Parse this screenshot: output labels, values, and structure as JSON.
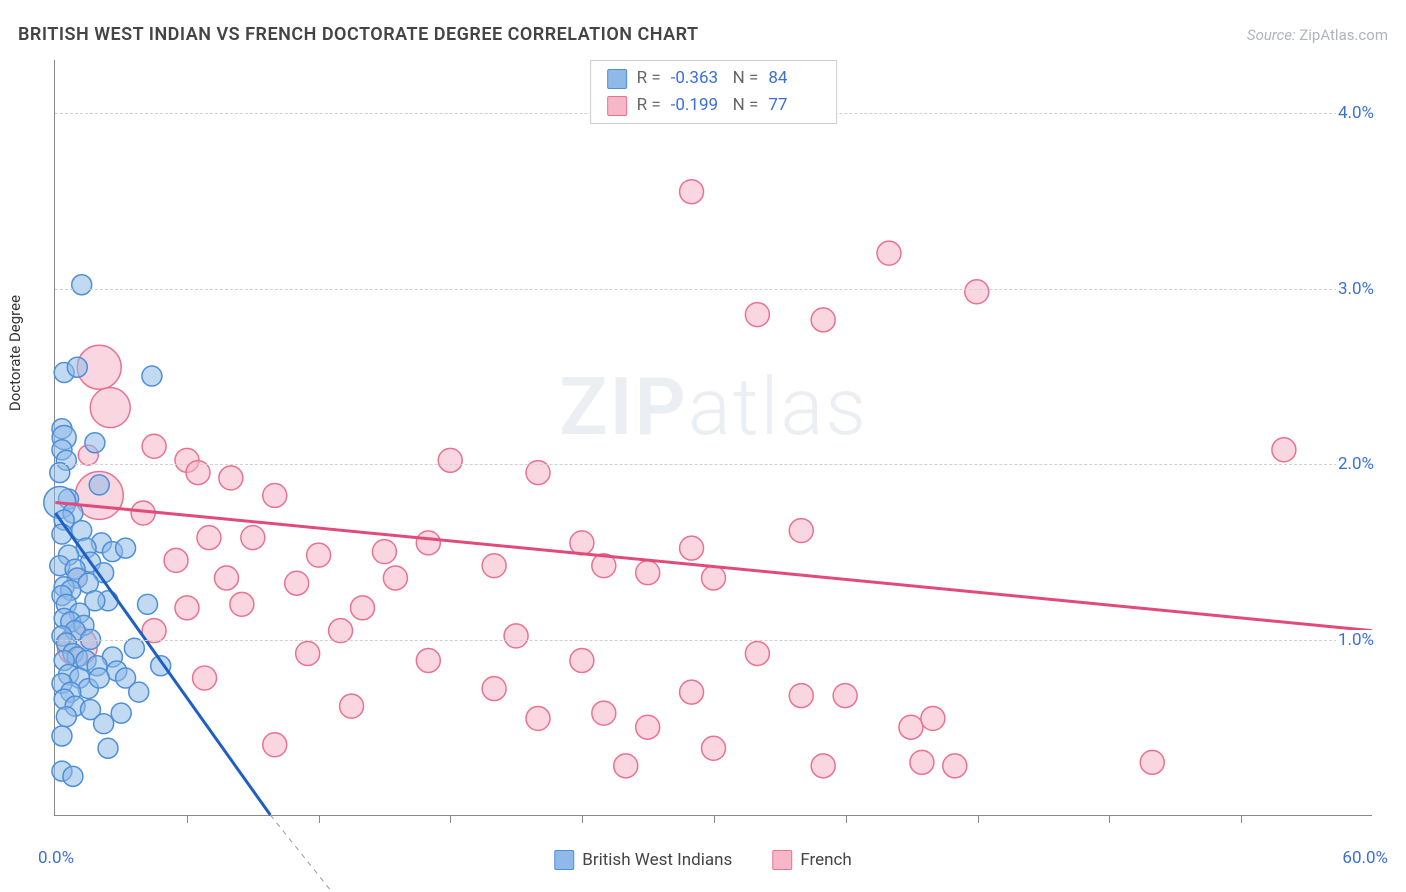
{
  "header": {
    "title": "BRITISH WEST INDIAN VS FRENCH DOCTORATE DEGREE CORRELATION CHART",
    "source_prefix": "Source: ",
    "source_name": "ZipAtlas.com"
  },
  "watermark": {
    "zip": "ZIP",
    "atlas": "atlas"
  },
  "chart": {
    "type": "scatter",
    "background_color": "#ffffff",
    "grid_color": "#d0d0d0",
    "axis_color": "#888888",
    "yaxis_label": "Doctorate Degree",
    "xlim": [
      0,
      60
    ],
    "ylim": [
      0,
      4.3
    ],
    "x_min_label": "0.0%",
    "x_max_label": "60.0%",
    "y_ticks": [
      {
        "v": 1.0,
        "label": "1.0%"
      },
      {
        "v": 2.0,
        "label": "2.0%"
      },
      {
        "v": 3.0,
        "label": "3.0%"
      },
      {
        "v": 4.0,
        "label": "4.0%"
      }
    ],
    "x_tick_positions": [
      6,
      12,
      18,
      24,
      30,
      36,
      42,
      48,
      54
    ],
    "tick_label_color": "#3b6fd6",
    "tick_label_fontsize": 17
  },
  "series": {
    "blue": {
      "name": "British West Indians",
      "fill": "#8fb9e8",
      "stroke": "#4d8fd8",
      "fill_opacity": 0.55,
      "trend": {
        "x1": 0,
        "y1": 1.72,
        "x2": 9.8,
        "y2": 0,
        "color": "#1f5fc4",
        "width": 3,
        "dash_x2": 13.0,
        "dash_y2": -0.5
      },
      "default_r": 10,
      "points": [
        {
          "x": 1.2,
          "y": 3.02,
          "r": 10
        },
        {
          "x": 0.4,
          "y": 2.52,
          "r": 10
        },
        {
          "x": 1.0,
          "y": 2.55,
          "r": 10
        },
        {
          "x": 4.4,
          "y": 2.5,
          "r": 10
        },
        {
          "x": 0.3,
          "y": 2.2,
          "r": 10
        },
        {
          "x": 0.4,
          "y": 2.15,
          "r": 12
        },
        {
          "x": 1.8,
          "y": 2.12,
          "r": 10
        },
        {
          "x": 0.3,
          "y": 2.08,
          "r": 10
        },
        {
          "x": 0.5,
          "y": 2.02,
          "r": 10
        },
        {
          "x": 0.2,
          "y": 1.95,
          "r": 10
        },
        {
          "x": 2.0,
          "y": 1.88,
          "r": 10
        },
        {
          "x": 0.6,
          "y": 1.8,
          "r": 10
        },
        {
          "x": 0.2,
          "y": 1.78,
          "r": 16
        },
        {
          "x": 0.8,
          "y": 1.72,
          "r": 10
        },
        {
          "x": 0.4,
          "y": 1.68,
          "r": 10
        },
        {
          "x": 1.2,
          "y": 1.62,
          "r": 10
        },
        {
          "x": 0.3,
          "y": 1.6,
          "r": 10
        },
        {
          "x": 2.1,
          "y": 1.55,
          "r": 10
        },
        {
          "x": 1.4,
          "y": 1.52,
          "r": 10
        },
        {
          "x": 2.6,
          "y": 1.5,
          "r": 10
        },
        {
          "x": 3.2,
          "y": 1.52,
          "r": 10
        },
        {
          "x": 0.6,
          "y": 1.48,
          "r": 10
        },
        {
          "x": 1.6,
          "y": 1.44,
          "r": 10
        },
        {
          "x": 0.2,
          "y": 1.42,
          "r": 10
        },
        {
          "x": 0.9,
          "y": 1.4,
          "r": 10
        },
        {
          "x": 2.2,
          "y": 1.38,
          "r": 10
        },
        {
          "x": 1.0,
          "y": 1.35,
          "r": 10
        },
        {
          "x": 1.5,
          "y": 1.32,
          "r": 10
        },
        {
          "x": 0.4,
          "y": 1.3,
          "r": 10
        },
        {
          "x": 0.7,
          "y": 1.28,
          "r": 10
        },
        {
          "x": 0.3,
          "y": 1.25,
          "r": 10
        },
        {
          "x": 2.4,
          "y": 1.22,
          "r": 10
        },
        {
          "x": 1.8,
          "y": 1.22,
          "r": 10
        },
        {
          "x": 0.5,
          "y": 1.2,
          "r": 10
        },
        {
          "x": 4.2,
          "y": 1.2,
          "r": 10
        },
        {
          "x": 1.1,
          "y": 1.15,
          "r": 10
        },
        {
          "x": 0.4,
          "y": 1.12,
          "r": 10
        },
        {
          "x": 0.7,
          "y": 1.1,
          "r": 10
        },
        {
          "x": 1.3,
          "y": 1.08,
          "r": 10
        },
        {
          "x": 0.9,
          "y": 1.05,
          "r": 10
        },
        {
          "x": 0.3,
          "y": 1.02,
          "r": 10
        },
        {
          "x": 1.6,
          "y": 1.0,
          "r": 10
        },
        {
          "x": 0.5,
          "y": 0.98,
          "r": 10
        },
        {
          "x": 3.6,
          "y": 0.95,
          "r": 10
        },
        {
          "x": 0.8,
          "y": 0.92,
          "r": 10
        },
        {
          "x": 1.0,
          "y": 0.9,
          "r": 10
        },
        {
          "x": 0.4,
          "y": 0.88,
          "r": 10
        },
        {
          "x": 1.4,
          "y": 0.88,
          "r": 10
        },
        {
          "x": 2.6,
          "y": 0.9,
          "r": 10
        },
        {
          "x": 1.9,
          "y": 0.85,
          "r": 10
        },
        {
          "x": 2.8,
          "y": 0.82,
          "r": 10
        },
        {
          "x": 4.8,
          "y": 0.85,
          "r": 10
        },
        {
          "x": 0.6,
          "y": 0.8,
          "r": 10
        },
        {
          "x": 1.1,
          "y": 0.78,
          "r": 10
        },
        {
          "x": 3.2,
          "y": 0.78,
          "r": 10
        },
        {
          "x": 0.3,
          "y": 0.75,
          "r": 10
        },
        {
          "x": 1.5,
          "y": 0.72,
          "r": 10
        },
        {
          "x": 2.0,
          "y": 0.78,
          "r": 10
        },
        {
          "x": 0.7,
          "y": 0.7,
          "r": 10
        },
        {
          "x": 3.8,
          "y": 0.7,
          "r": 10
        },
        {
          "x": 0.4,
          "y": 0.66,
          "r": 10
        },
        {
          "x": 0.9,
          "y": 0.62,
          "r": 10
        },
        {
          "x": 1.6,
          "y": 0.6,
          "r": 10
        },
        {
          "x": 3.0,
          "y": 0.58,
          "r": 10
        },
        {
          "x": 0.5,
          "y": 0.56,
          "r": 10
        },
        {
          "x": 2.2,
          "y": 0.52,
          "r": 10
        },
        {
          "x": 0.3,
          "y": 0.45,
          "r": 10
        },
        {
          "x": 2.4,
          "y": 0.38,
          "r": 10
        },
        {
          "x": 0.3,
          "y": 0.25,
          "r": 10
        },
        {
          "x": 0.8,
          "y": 0.22,
          "r": 10
        }
      ]
    },
    "pink": {
      "name": "French",
      "fill": "#f6b7c7",
      "stroke": "#e97294",
      "fill_opacity": 0.55,
      "trend": {
        "x1": 0,
        "y1": 1.78,
        "x2": 60,
        "y2": 1.05,
        "color": "#e24a7a",
        "width": 3
      },
      "default_r": 12,
      "points": [
        {
          "x": 29,
          "y": 3.55,
          "r": 12
        },
        {
          "x": 38,
          "y": 3.2,
          "r": 12
        },
        {
          "x": 42,
          "y": 2.98,
          "r": 12
        },
        {
          "x": 32,
          "y": 2.85,
          "r": 12
        },
        {
          "x": 35,
          "y": 2.82,
          "r": 12
        },
        {
          "x": 2.0,
          "y": 2.55,
          "r": 22
        },
        {
          "x": 2.5,
          "y": 2.32,
          "r": 20
        },
        {
          "x": 4.5,
          "y": 2.1,
          "r": 12
        },
        {
          "x": 56,
          "y": 2.08,
          "r": 12
        },
        {
          "x": 1.5,
          "y": 2.05,
          "r": 10
        },
        {
          "x": 6.0,
          "y": 2.02,
          "r": 12
        },
        {
          "x": 18,
          "y": 2.02,
          "r": 12
        },
        {
          "x": 6.5,
          "y": 1.95,
          "r": 12
        },
        {
          "x": 8.0,
          "y": 1.92,
          "r": 12
        },
        {
          "x": 22,
          "y": 1.95,
          "r": 12
        },
        {
          "x": 2.0,
          "y": 1.82,
          "r": 24
        },
        {
          "x": 10,
          "y": 1.82,
          "r": 12
        },
        {
          "x": 4.0,
          "y": 1.72,
          "r": 12
        },
        {
          "x": 34,
          "y": 1.62,
          "r": 12
        },
        {
          "x": 7.0,
          "y": 1.58,
          "r": 12
        },
        {
          "x": 9.0,
          "y": 1.58,
          "r": 12
        },
        {
          "x": 17,
          "y": 1.55,
          "r": 12
        },
        {
          "x": 24,
          "y": 1.55,
          "r": 12
        },
        {
          "x": 29,
          "y": 1.52,
          "r": 12
        },
        {
          "x": 5.5,
          "y": 1.45,
          "r": 12
        },
        {
          "x": 12,
          "y": 1.48,
          "r": 12
        },
        {
          "x": 15,
          "y": 1.5,
          "r": 12
        },
        {
          "x": 20,
          "y": 1.42,
          "r": 12
        },
        {
          "x": 25,
          "y": 1.42,
          "r": 12
        },
        {
          "x": 27,
          "y": 1.38,
          "r": 12
        },
        {
          "x": 30,
          "y": 1.35,
          "r": 12
        },
        {
          "x": 1.0,
          "y": 1.35,
          "r": 10
        },
        {
          "x": 7.8,
          "y": 1.35,
          "r": 12
        },
        {
          "x": 11,
          "y": 1.32,
          "r": 12
        },
        {
          "x": 15.5,
          "y": 1.35,
          "r": 12
        },
        {
          "x": 8.5,
          "y": 1.2,
          "r": 12
        },
        {
          "x": 6.0,
          "y": 1.18,
          "r": 12
        },
        {
          "x": 14,
          "y": 1.18,
          "r": 12
        },
        {
          "x": 4.5,
          "y": 1.05,
          "r": 12
        },
        {
          "x": 13,
          "y": 1.05,
          "r": 12
        },
        {
          "x": 21,
          "y": 1.02,
          "r": 12
        },
        {
          "x": 11.5,
          "y": 0.92,
          "r": 12
        },
        {
          "x": 17,
          "y": 0.88,
          "r": 12
        },
        {
          "x": 24,
          "y": 0.88,
          "r": 12
        },
        {
          "x": 32,
          "y": 0.92,
          "r": 12
        },
        {
          "x": 6.8,
          "y": 0.78,
          "r": 12
        },
        {
          "x": 20,
          "y": 0.72,
          "r": 12
        },
        {
          "x": 29,
          "y": 0.7,
          "r": 12
        },
        {
          "x": 34,
          "y": 0.68,
          "r": 12
        },
        {
          "x": 36,
          "y": 0.68,
          "r": 12
        },
        {
          "x": 13.5,
          "y": 0.62,
          "r": 12
        },
        {
          "x": 22,
          "y": 0.55,
          "r": 12
        },
        {
          "x": 25,
          "y": 0.58,
          "r": 12
        },
        {
          "x": 27,
          "y": 0.5,
          "r": 12
        },
        {
          "x": 39,
          "y": 0.5,
          "r": 12
        },
        {
          "x": 40,
          "y": 0.55,
          "r": 12
        },
        {
          "x": 10,
          "y": 0.4,
          "r": 12
        },
        {
          "x": 30,
          "y": 0.38,
          "r": 12
        },
        {
          "x": 26,
          "y": 0.28,
          "r": 12
        },
        {
          "x": 35,
          "y": 0.28,
          "r": 12
        },
        {
          "x": 39.5,
          "y": 0.3,
          "r": 12
        },
        {
          "x": 41,
          "y": 0.28,
          "r": 12
        },
        {
          "x": 50,
          "y": 0.3,
          "r": 12
        },
        {
          "x": 1.0,
          "y": 0.96,
          "r": 20
        }
      ]
    }
  },
  "stats_legend": {
    "rows": [
      {
        "swatch_fill": "#8fb9e8",
        "swatch_stroke": "#4d8fd8",
        "r_label": "R =",
        "r_value": "-0.363",
        "n_label": "N =",
        "n_value": "84"
      },
      {
        "swatch_fill": "#f6b7c7",
        "swatch_stroke": "#e97294",
        "r_label": "R =",
        "r_value": "-0.199",
        "n_label": "N =",
        "n_value": "77"
      }
    ]
  },
  "bottom_legend": {
    "items": [
      {
        "label": "British West Indians",
        "fill": "#8fb9e8",
        "stroke": "#4d8fd8"
      },
      {
        "label": "French",
        "fill": "#f6b7c7",
        "stroke": "#e97294"
      }
    ]
  }
}
